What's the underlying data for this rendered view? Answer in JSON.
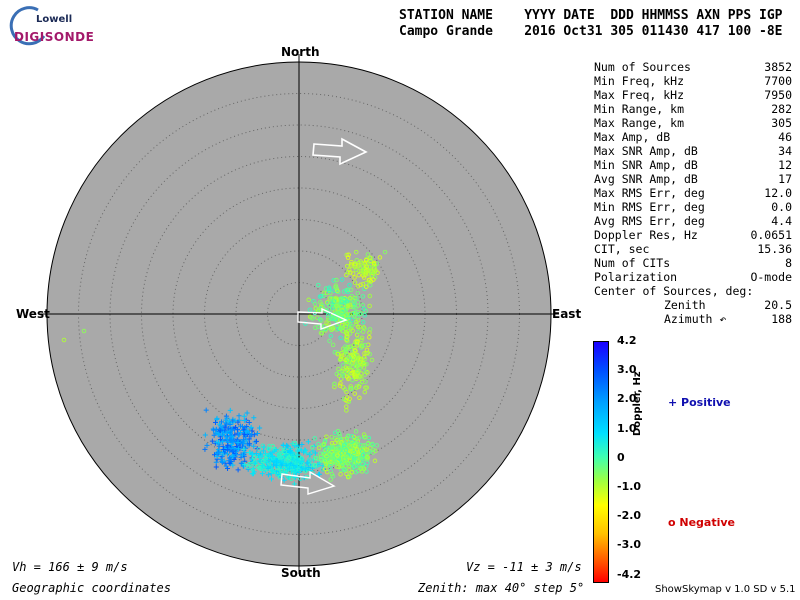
{
  "logo": {
    "lowell": "Lowell",
    "digisonde": "DIGISONDE"
  },
  "header": {
    "line1": "STATION NAME    YYYY DATE  DDD HHMMSS AXN PPS IGP",
    "line2": "Campo Grande    2016 Oct31 305 011430 417 100 -8E"
  },
  "directions": {
    "north": "North",
    "south": "South",
    "east": "East",
    "west": "West"
  },
  "stats": [
    {
      "label": "Num of Sources",
      "value": "3852"
    },
    {
      "label": "Min Freq, kHz",
      "value": "7700"
    },
    {
      "label": "Max Freq, kHz",
      "value": "7950"
    },
    {
      "label": "Min Range, km",
      "value": "282"
    },
    {
      "label": "Max Range, km",
      "value": "305"
    },
    {
      "label": "Max Amp, dB",
      "value": "46"
    },
    {
      "label": "Max SNR Amp, dB",
      "value": "34"
    },
    {
      "label": "Min SNR Amp, dB",
      "value": "12"
    },
    {
      "label": "Avg SNR Amp, dB",
      "value": "17"
    },
    {
      "label": "Max RMS Err, deg",
      "value": "12.0"
    },
    {
      "label": "Min RMS Err, deg",
      "value": "0.0"
    },
    {
      "label": "Avg RMS Err, deg",
      "value": "4.4"
    },
    {
      "label": "Doppler Res, Hz",
      "value": "0.0651"
    },
    {
      "label": "CIT, sec",
      "value": "15.36"
    },
    {
      "label": "Num of CITs",
      "value": "8"
    },
    {
      "label": "Polarization",
      "value": "O-mode"
    },
    {
      "label": "Center of Sources, deg:",
      "value": ""
    },
    {
      "label": "Zenith",
      "value": "20.5",
      "indent": true
    },
    {
      "label": "Azimuth ↶",
      "value": "188",
      "indent": true
    }
  ],
  "colorbar": {
    "title": "Doppler, Hz",
    "ticks": [
      "4.2",
      "3.0",
      "2.0",
      "1.0",
      "0",
      "-1.0",
      "-2.0",
      "-3.0",
      "-4.2"
    ]
  },
  "legend": {
    "positive": "+ Positive",
    "negative": "o Negative",
    "positive_color": "#1010b0",
    "negative_color": "#d00000"
  },
  "footer": {
    "vh": "Vh = 166 ± 9 m/s",
    "vz": "Vz = -11 ± 3 m/s",
    "coords": "Geographic coordinates",
    "zenith": "Zenith: max 40°  step 5°",
    "version": "ShowSkymap v 1.0   SD v 5.1"
  }
}
